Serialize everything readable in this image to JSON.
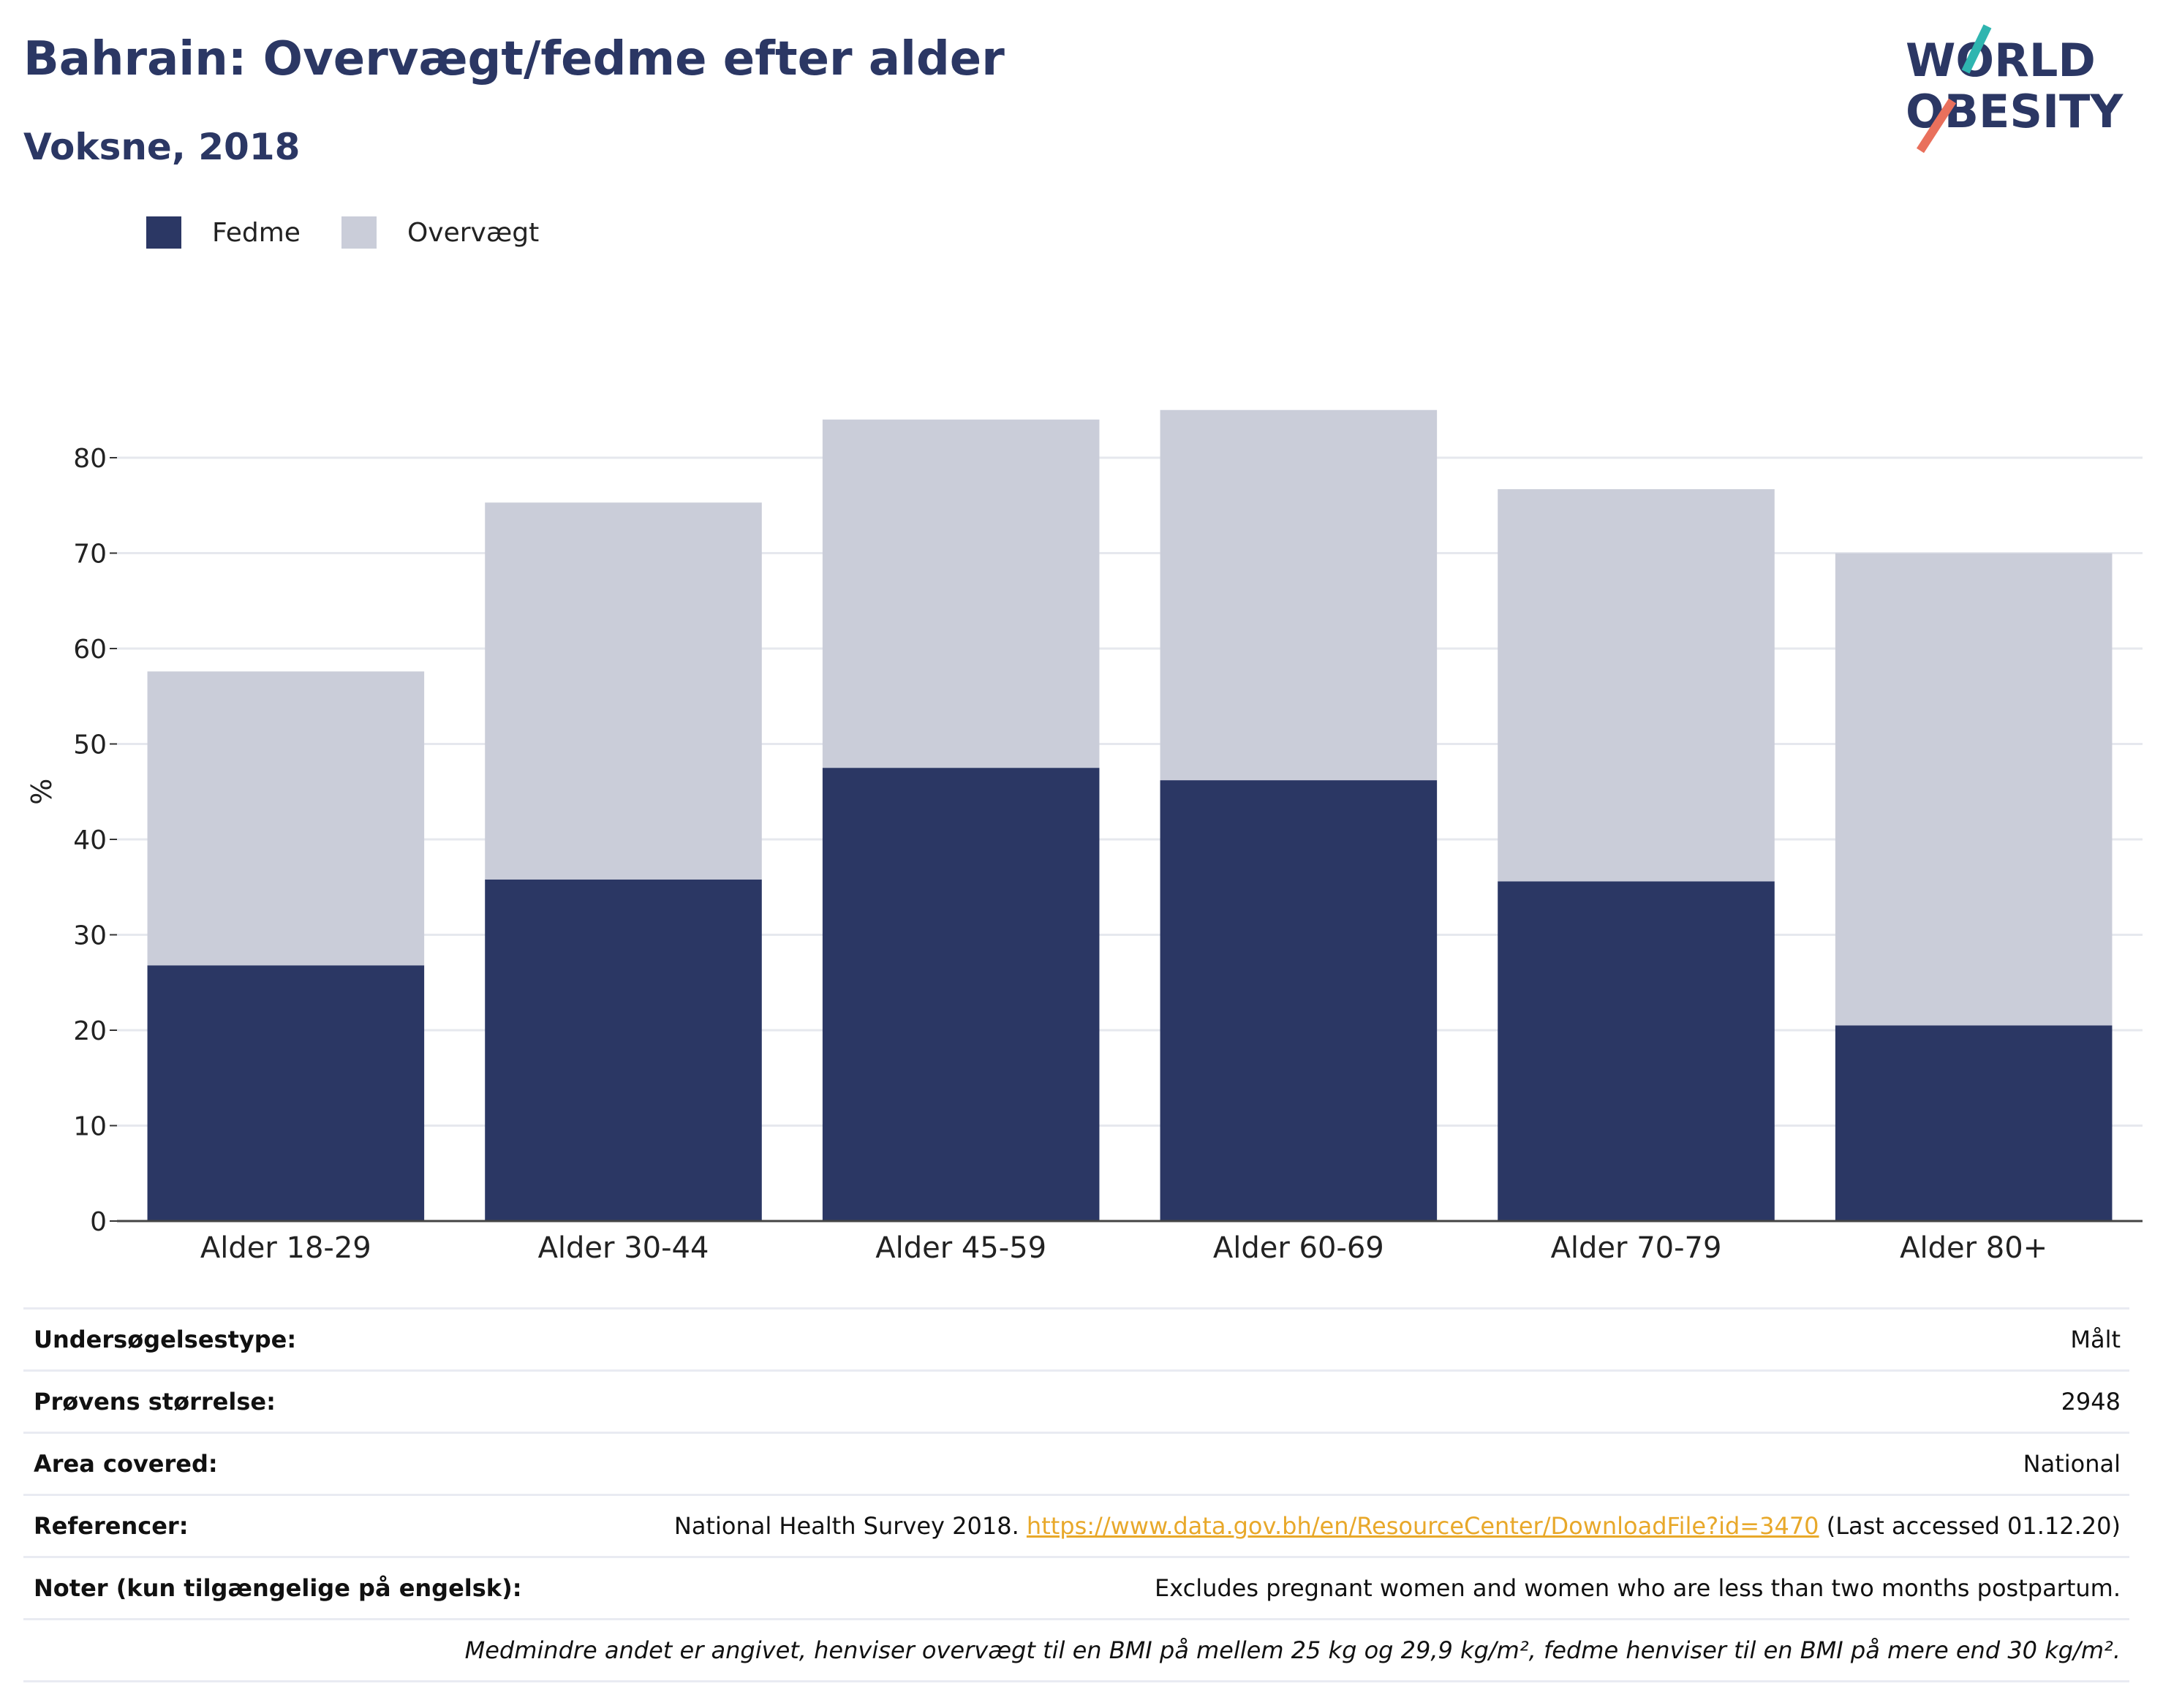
{
  "title": "Bahrain: Overvægt/fedme efter alder",
  "subtitle": "Voksne, 2018",
  "logo": {
    "line1": "WORLD",
    "line2": "OBESITY"
  },
  "colors": {
    "obesity": "#2b3764",
    "overweight": "#cacdd9",
    "title": "#2b3764",
    "link": "#e8a82a",
    "grid": "#e6e8ee",
    "logo_teal": "#2fb5b0",
    "logo_coral": "#e9705c"
  },
  "legend": [
    {
      "label": "Fedme",
      "color": "#2b3764"
    },
    {
      "label": "Overvægt",
      "color": "#cacdd9"
    }
  ],
  "chart_data": {
    "type": "bar",
    "stacked": true,
    "categories": [
      "Alder 18-29",
      "Alder 30-44",
      "Alder 45-59",
      "Alder 60-69",
      "Alder 70-79",
      "Alder 80+"
    ],
    "series": [
      {
        "name": "Fedme",
        "values": [
          26.8,
          35.8,
          47.5,
          46.2,
          35.6,
          20.5
        ]
      },
      {
        "name": "Overvægt",
        "values": [
          30.8,
          39.5,
          36.5,
          38.8,
          41.1,
          49.5
        ]
      }
    ],
    "ylabel": "%",
    "ylim": [
      0,
      90
    ],
    "yticks": [
      0,
      10,
      20,
      30,
      40,
      50,
      60,
      70,
      80
    ],
    "grid": true,
    "legend_position": "top-left"
  },
  "info": {
    "rows": [
      {
        "label": "Undersøgelsestype:",
        "value": "Målt"
      },
      {
        "label": "Prøvens størrelse:",
        "value": "2948"
      },
      {
        "label": "Area covered:",
        "value": "National"
      },
      {
        "label": "Referencer:",
        "value_prefix": "National Health Survey 2018. ",
        "link": "https://www.data.gov.bh/en/ResourceCenter/DownloadFile?id=3470",
        "value_suffix": " (Last accessed 01.12.20)"
      },
      {
        "label": "Noter (kun tilgængelige på engelsk):",
        "value": "Excludes pregnant women and women who are less than two months postpartum."
      }
    ],
    "footnote": "Medmindre andet er angivet, henviser overvægt til en BMI på mellem 25 kg og 29,9 kg/m², fedme henviser til en BMI på mere end 30 kg/m²."
  }
}
